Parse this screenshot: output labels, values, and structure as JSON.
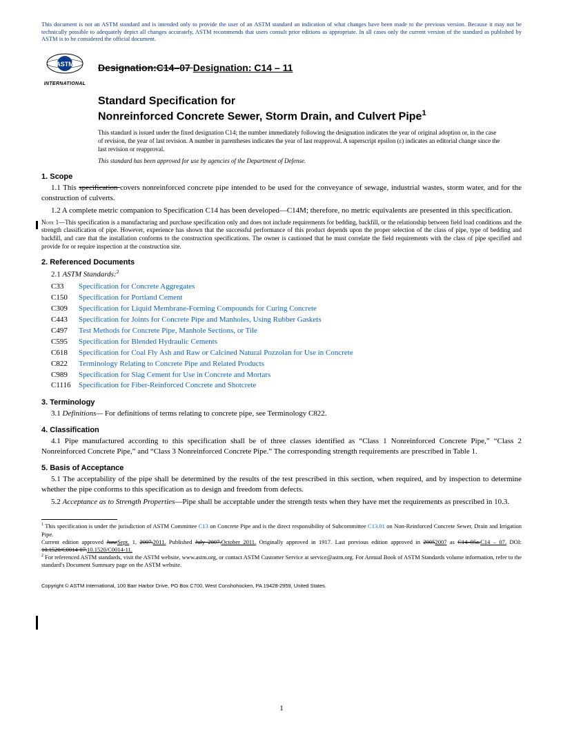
{
  "disclaimer": "This document is not an ASTM standard and is intended only to provide the user of an ASTM standard an indication of what changes have been made to the previous version. Because it may not be technically possible to adequately depict all changes accurately, ASTM recommends that users consult prior editions as appropriate. In all cases only the current version of the standard as published by ASTM is to be considered the official document.",
  "logo_label": "INTERNATIONAL",
  "designation": {
    "prefix_strike": "Designation:C14–07 ",
    "current": "Designation: C14 – 11"
  },
  "title_line1": "Standard Specification for",
  "title_line2": "Nonreinforced Concrete Sewer, Storm Drain, and Culvert Pipe",
  "title_sup": "1",
  "adoption_note": "This standard is issued under the fixed designation C14; the number immediately following the designation indicates the year of original adoption or, in the case of revision, the year of last revision. A number in parentheses indicates the year of last reapproval. A superscript epsilon (ε) indicates an editorial change since the last revision or reapproval.",
  "dod_note": "This standard has been approved for use by agencies of the Department of Defense.",
  "sections": {
    "scope_h": "1.  Scope",
    "scope_1_1_a": "1.1  This ",
    "scope_1_1_strike": "specification ",
    "scope_1_1_b": "covers nonreinforced concrete pipe intended to be used for the conveyance of sewage, industrial wastes, storm water, and for the construction of culverts.",
    "scope_1_2": "1.2  A complete metric companion to Specification C14 has been developed—C14M; therefore, no metric equivalents are presented in this specification.",
    "note1": "NOTE 1—This specification is a manufacturing and purchase specification only and does not include requirements for bedding, backfill, or the relationship between field load conditions and the strength classification of pipe. However, experience has shown that the successful performance of this product depends upon the proper selection of the class of pipe, type of bedding and backfill, and care that the installation conforms to the construction specifications. The owner is cautioned that he must correlate the field requirements with the class of pipe specified and provide for or require inspection at the construction site.",
    "refdocs_h": "2.  Referenced Documents",
    "refdocs_sub": "2.1  ",
    "refdocs_sub_i": "ASTM Standards:",
    "refdocs_sup": "2",
    "refs": [
      {
        "code": "C33",
        "title": "Specification for Concrete Aggregates"
      },
      {
        "code": "C150",
        "title": "Specification for Portland Cement"
      },
      {
        "code": "C309",
        "title": "Specification for Liquid Membrane-Forming Compounds for Curing Concrete"
      },
      {
        "code": "C443",
        "title": "Specification for Joints for Concrete Pipe and Manholes, Using Rubber Gaskets"
      },
      {
        "code": "C497",
        "title": "Test Methods for Concrete Pipe, Manhole Sections, or Tile"
      },
      {
        "code": "C595",
        "title": "Specification for Blended Hydraulic Cements"
      },
      {
        "code": "C618",
        "title": "Specification for Coal Fly Ash and Raw or Calcined Natural Pozzolan for Use in Concrete"
      },
      {
        "code": "C822",
        "title": "Terminology Relating to Concrete Pipe and Related Products"
      },
      {
        "code": "C989",
        "title": "Specification for Slag Cement for Use in Concrete and Mortars"
      },
      {
        "code": "C1116",
        "title": "Specification for Fiber-Reinforced Concrete and Shotcrete"
      }
    ],
    "term_h": "3.  Terminology",
    "term_3_1_a": "3.1  ",
    "term_3_1_i": "Definitions— ",
    "term_3_1_b": "For definitions of terms relating to concrete pipe, see Terminology C822.",
    "class_h": "4.  Classification",
    "class_4_1": "4.1  Pipe manufactured according to this specification shall be of three classes identified as “Class 1 Nonreinforced Concrete Pipe,” “Class 2 Nonreinforced Concrete Pipe,” and “Class 3 Nonreinforced Concrete Pipe.” The corresponding strength requirements are prescribed in Table 1.",
    "basis_h": "5.  Basis of Acceptance",
    "basis_5_1": "5.1  The acceptability of the pipe shall be determined by the results of the test prescribed in this section, when required, and by inspection to determine whether the pipe conforms to this specification as to design and freedom from defects.",
    "basis_5_2_a": "5.2  ",
    "basis_5_2_i": "Acceptance as to Strength Properties",
    "basis_5_2_b": "—Pipe shall be acceptable under the strength tests when they have met the requirements as prescribed in 10.3."
  },
  "footnotes": {
    "f1_a": " This specification is under the jurisdiction of ASTM Committee ",
    "f1_link1": "C13",
    "f1_b": " on Concrete Pipe and is the direct responsibility of Subcommittee ",
    "f1_link2": "C13.01",
    "f1_c": " on Non-Reinforced Concrete Sewer, Drain and Irrigation Pipe.",
    "f1_line2_a": "Current edition approved ",
    "f1_line2_strike1": "June",
    "f1_line2_ins1": "Sept.",
    "f1_line2_b": " 1, ",
    "f1_line2_strike2": "2007.",
    "f1_line2_ins2": "2011.",
    "f1_line2_c": " Published ",
    "f1_line2_strike3": "July 2007.",
    "f1_line2_ins3": "October 2011.",
    "f1_line2_d": " Originally approved in 1917. Last previous edition approved in ",
    "f1_line2_strike4": "2005",
    "f1_line2_ins4": "2007",
    "f1_line2_e": " as ",
    "f1_line2_strike5": "C14–05a.",
    "f1_line2_ins5": "C14 – 07.",
    "f1_line2_f": " DOI: ",
    "f1_line2_strike6": "10.1520/C0014-07.",
    "f1_line2_ins6": "10.1520/C0014-11.",
    "f2": " For referenced ASTM standards, visit the ASTM website, www.astm.org, or contact ASTM Customer Service at service@astm.org. For Annual Book of ASTM Standards volume information, refer to the standard's Document Summary page on the ASTM website."
  },
  "copyright": "Copyright © ASTM International, 100 Barr Harbor Drive, PO Box C700, West Conshohocken, PA 19428-2959, United States.",
  "pagenum": "1",
  "colors": {
    "link": "#0a5fc4",
    "disclaimer": "#0a3a8a"
  }
}
